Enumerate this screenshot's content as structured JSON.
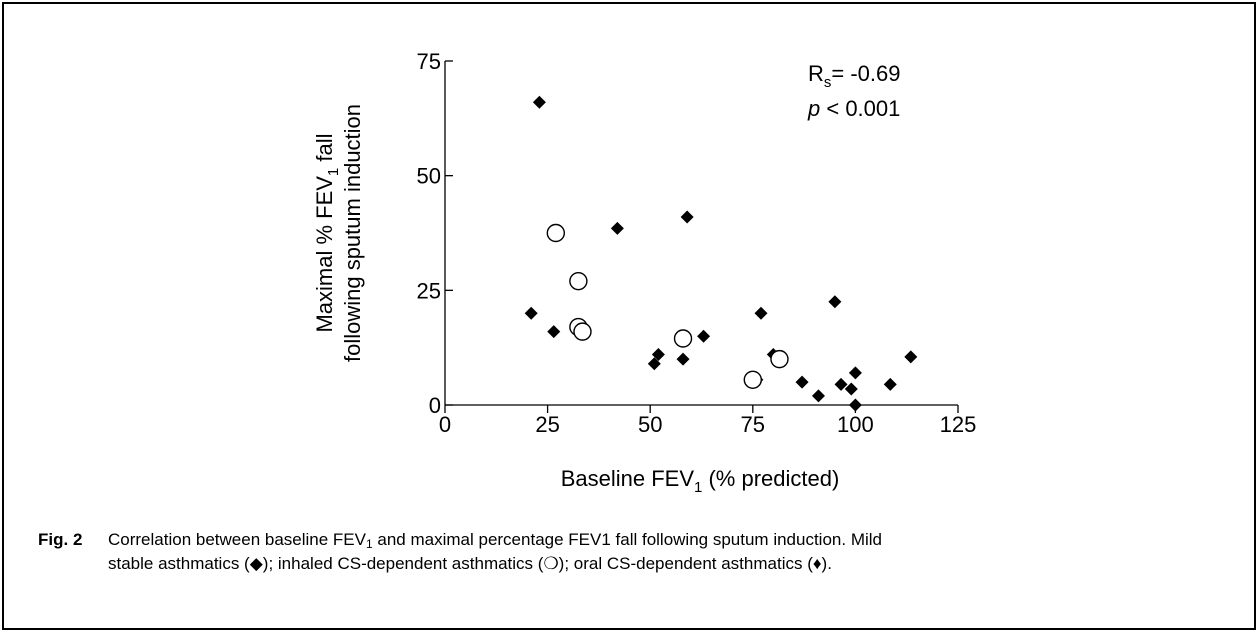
{
  "chart_data": {
    "type": "scatter",
    "x_label_parts": [
      "Baseline FEV",
      "1",
      " (% predicted)"
    ],
    "y_label_line1_parts": [
      "Maximal % FEV",
      "1",
      " fall"
    ],
    "y_label_line2": "following sputum induction",
    "xlim": [
      0,
      125
    ],
    "ylim": [
      0,
      75
    ],
    "x_ticks": [
      "0",
      "25",
      "50",
      "75",
      "100",
      "125"
    ],
    "y_ticks": [
      "0",
      "25",
      "50",
      "75"
    ],
    "x_tick_values": [
      0,
      25,
      50,
      75,
      100,
      125
    ],
    "y_tick_values": [
      0,
      25,
      50,
      75
    ],
    "stats": {
      "rs_label": "R",
      "rs_sub": "s",
      "rs_value": "= -0.69",
      "p_label": "p",
      "p_value": " < 0.001"
    },
    "series": [
      {
        "marker": "filled-diamond",
        "points": [
          [
            23,
            66
          ],
          [
            21,
            20
          ],
          [
            26.5,
            16
          ],
          [
            42,
            38.5
          ],
          [
            59,
            41
          ],
          [
            51,
            9
          ],
          [
            52,
            11
          ],
          [
            58,
            10
          ],
          [
            63,
            15
          ],
          [
            77,
            20
          ],
          [
            76,
            5.5
          ],
          [
            80,
            11
          ],
          [
            87,
            5
          ],
          [
            91,
            2
          ],
          [
            95,
            22.5
          ],
          [
            96.5,
            4.5
          ],
          [
            99,
            3.5
          ],
          [
            100,
            7
          ],
          [
            100,
            0
          ],
          [
            108.5,
            4.5
          ],
          [
            113.5,
            10.5
          ]
        ]
      },
      {
        "marker": "open-circle",
        "points": [
          [
            27,
            37.5
          ],
          [
            32.5,
            27
          ],
          [
            32.5,
            17
          ],
          [
            33.5,
            16
          ],
          [
            58,
            14.5
          ],
          [
            75,
            5.5
          ],
          [
            81.5,
            10
          ]
        ]
      }
    ]
  },
  "caption": {
    "label": "Fig. 2",
    "text_a": "Correlation between baseline FEV",
    "text_a_sub": "1",
    "text_b": " and maximal percentage FEV1 fall following sputum induction.  Mild",
    "line2": "stable asthmatics (◆); inhaled CS-dependent asthmatics (❍); oral CS-dependent asthmatics (♦)."
  }
}
